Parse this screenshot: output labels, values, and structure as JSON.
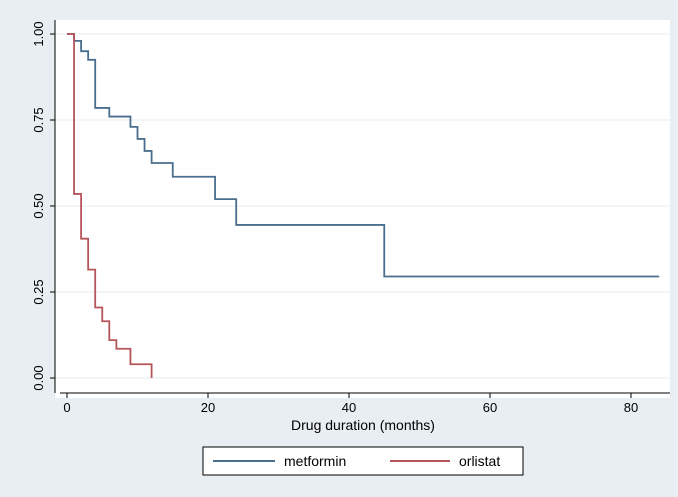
{
  "chart_data": {
    "type": "line",
    "step": true,
    "title": "",
    "xlabel": "Drug duration (months)",
    "ylabel": "",
    "xlim": [
      0,
      85
    ],
    "ylim": [
      0,
      1
    ],
    "xticks": [
      0,
      20,
      40,
      60,
      80
    ],
    "xtick_labels": [
      "0",
      "20",
      "40",
      "60",
      "80"
    ],
    "yticks": [
      0,
      0.25,
      0.5,
      0.75,
      1
    ],
    "ytick_labels": [
      "0.00",
      "0.25",
      "0.50",
      "0.75",
      "1.00"
    ],
    "grid": "horizontal",
    "legend_position": "bottom",
    "series": [
      {
        "name": "metformin",
        "color": "#4a6e8e",
        "x": [
          0,
          1,
          2,
          3,
          4,
          6,
          9,
          10,
          11,
          12,
          15,
          21,
          24,
          45,
          84
        ],
        "y": [
          1.0,
          0.98,
          0.95,
          0.925,
          0.785,
          0.76,
          0.73,
          0.695,
          0.66,
          0.625,
          0.585,
          0.52,
          0.445,
          0.295,
          0.295
        ]
      },
      {
        "name": "orlistat",
        "color": "#b5555a",
        "x": [
          0,
          1,
          2,
          3,
          4,
          5,
          6,
          7,
          9,
          12
        ],
        "y": [
          1.0,
          0.535,
          0.405,
          0.315,
          0.205,
          0.165,
          0.11,
          0.085,
          0.04,
          0.0
        ]
      }
    ]
  }
}
